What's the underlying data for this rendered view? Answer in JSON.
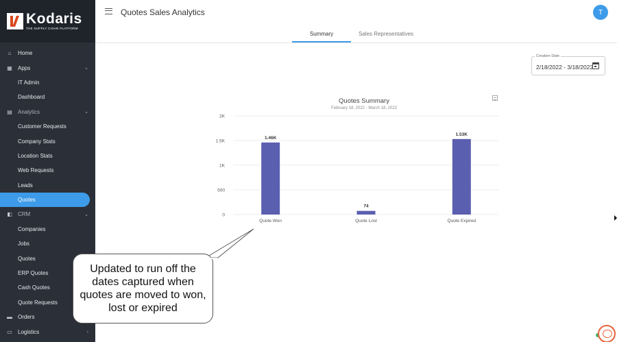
{
  "brand": {
    "name": "Kodaris",
    "tagline": "THE SUPPLY CHAIN PLATFORM"
  },
  "sidebar": {
    "items": [
      {
        "label": "Home",
        "type": "top",
        "icon": "home-icon",
        "glyph": "⌂"
      },
      {
        "label": "Apps",
        "type": "top",
        "icon": "grid-icon",
        "glyph": "▦",
        "chevron": "⌄"
      },
      {
        "label": "IT Admin",
        "type": "sub"
      },
      {
        "label": "Dashboard",
        "type": "sub"
      },
      {
        "label": "Analytics",
        "type": "top",
        "dim": true,
        "icon": "analytics-icon",
        "glyph": "▤",
        "chevron": "⌄"
      },
      {
        "label": "Customer Requests",
        "type": "sub"
      },
      {
        "label": "Company Stats",
        "type": "sub"
      },
      {
        "label": "Location Stats",
        "type": "sub"
      },
      {
        "label": "Web Requests",
        "type": "sub"
      },
      {
        "label": "Leads",
        "type": "sub"
      },
      {
        "label": "Quotes",
        "type": "sub",
        "active": true
      },
      {
        "label": "CRM",
        "type": "top",
        "dim": true,
        "icon": "database-icon",
        "glyph": "◧",
        "chevron": "⌄"
      },
      {
        "label": "Companies",
        "type": "sub"
      },
      {
        "label": "Jobs",
        "type": "sub"
      },
      {
        "label": "Quotes",
        "type": "sub"
      },
      {
        "label": "ERP Quotes",
        "type": "sub"
      },
      {
        "label": "Cash Quotes",
        "type": "sub"
      },
      {
        "label": "Quote Requests",
        "type": "sub"
      },
      {
        "label": "Orders",
        "type": "top",
        "icon": "truck-icon",
        "glyph": "▬"
      },
      {
        "label": "Logistics",
        "type": "top",
        "icon": "shipping-icon",
        "glyph": "▭",
        "chevron": "›"
      }
    ]
  },
  "header": {
    "title": "Quotes Sales Analytics",
    "avatar_initial": "T"
  },
  "tabs": [
    {
      "label": "Summary",
      "active": true
    },
    {
      "label": "Sales Representatives",
      "active": false
    }
  ],
  "filter": {
    "label": "Creation Date",
    "value": "2/18/2022 - 3/18/2022"
  },
  "chart_data": {
    "type": "bar",
    "title": "Quotes Summary",
    "subtitle": "February 18, 2022 - March 18, 2022",
    "categories": [
      "Quote Won",
      "Quote Lost",
      "Quote Expired"
    ],
    "values": [
      1460,
      74,
      1530
    ],
    "data_labels": [
      "1.46K",
      "74",
      "1.53K"
    ],
    "yticks": [
      0,
      500,
      1000,
      1500,
      2000
    ],
    "ytick_labels": [
      "0",
      "500",
      "1K",
      "1.5K",
      "2K"
    ],
    "ylim": [
      0,
      2000
    ],
    "bar_color": "#5b5fb0",
    "grid": true,
    "xlabel": "",
    "ylabel": ""
  },
  "annotation": {
    "text": "Updated to run off the dates captured when quotes are moved to won, lost or expired"
  },
  "colors": {
    "accent": "#3d9be9",
    "sidebar": "#2b2f38"
  }
}
